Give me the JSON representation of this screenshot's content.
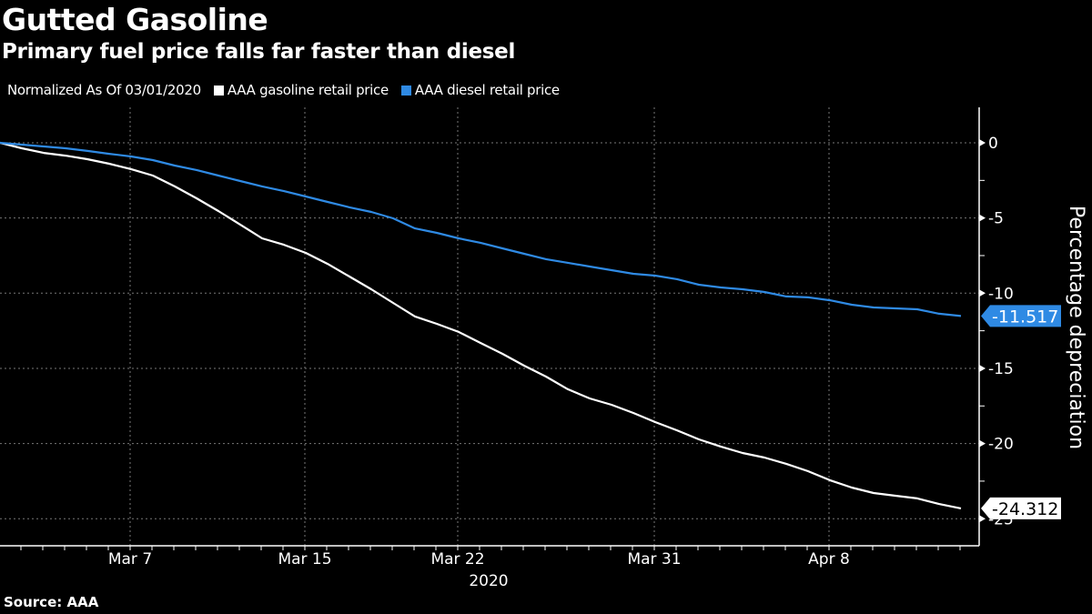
{
  "header": {
    "title": "Gutted Gasoline",
    "subtitle": "Primary fuel price falls far faster than diesel"
  },
  "legend": {
    "note": "Normalized As Of 03/01/2020",
    "items": [
      {
        "label": "AAA gasoline retail price",
        "color": "#ffffff"
      },
      {
        "label": "AAA diesel retail price",
        "color": "#2f8ae4"
      }
    ]
  },
  "footer": {
    "source": "Source: AAA"
  },
  "chart_data": {
    "type": "line",
    "title": "Gutted Gasoline",
    "subtitle": "Primary fuel price falls far faster than diesel",
    "xlabel": "2020",
    "ylabel": "Percentage depreciation",
    "x_start": "2020-03-01",
    "x_end": "2020-04-14",
    "x_step": "1 day",
    "x_ticks": [
      {
        "label": "Mar 7",
        "day_index": 6
      },
      {
        "label": "Mar 15",
        "day_index": 14
      },
      {
        "label": "Mar 22",
        "day_index": 21
      },
      {
        "label": "Mar 31",
        "day_index": 30
      },
      {
        "label": "Apr 8",
        "day_index": 38
      }
    ],
    "x_year_label": "2020",
    "y_ticks": [
      0,
      -5,
      -10,
      -15,
      -20,
      -25
    ],
    "y_tick_labels": [
      "0",
      "-5",
      "-10",
      "-15",
      "-20",
      "-25"
    ],
    "ylim": [
      -26.5,
      2.5
    ],
    "grid": true,
    "legend_position": "top-left",
    "y_axis_side": "right",
    "series": [
      {
        "name": "AAA gasoline retail price",
        "color": "#ffffff",
        "last_value_label": "-24.312",
        "values": [
          0,
          -0.36,
          -0.67,
          -0.85,
          -1.09,
          -1.39,
          -1.75,
          -2.18,
          -2.9,
          -3.69,
          -4.54,
          -5.44,
          -6.35,
          -6.78,
          -7.32,
          -8.05,
          -8.89,
          -9.74,
          -10.65,
          -11.55,
          -12.04,
          -12.58,
          -13.31,
          -14.03,
          -14.82,
          -15.55,
          -16.39,
          -17.0,
          -17.42,
          -17.97,
          -18.57,
          -19.12,
          -19.72,
          -20.2,
          -20.63,
          -20.93,
          -21.35,
          -21.84,
          -22.44,
          -22.93,
          -23.29,
          -23.47,
          -23.65,
          -24.02,
          -24.312
        ]
      },
      {
        "name": "AAA diesel retail price",
        "color": "#2f8ae4",
        "last_value_label": "-11.517",
        "values": [
          0,
          -0.12,
          -0.24,
          -0.36,
          -0.54,
          -0.73,
          -0.91,
          -1.15,
          -1.51,
          -1.81,
          -2.18,
          -2.54,
          -2.9,
          -3.21,
          -3.57,
          -3.93,
          -4.29,
          -4.6,
          -5.02,
          -5.69,
          -5.99,
          -6.35,
          -6.65,
          -7.02,
          -7.38,
          -7.74,
          -7.98,
          -8.23,
          -8.47,
          -8.71,
          -8.83,
          -9.07,
          -9.44,
          -9.62,
          -9.74,
          -9.92,
          -10.22,
          -10.28,
          -10.47,
          -10.77,
          -10.95,
          -11.01,
          -11.07,
          -11.37,
          -11.517
        ]
      }
    ]
  }
}
